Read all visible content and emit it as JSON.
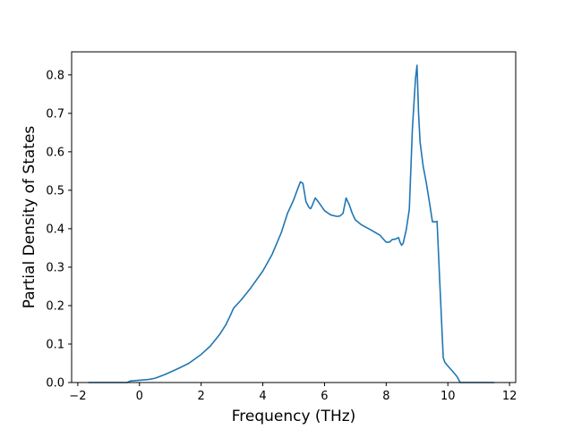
{
  "chart_data": {
    "type": "line",
    "title": "",
    "xlabel": "Frequency (THz)",
    "ylabel": "Partial Density of States",
    "xlim": [
      -2.2,
      12.2
    ],
    "ylim": [
      0.0,
      0.86
    ],
    "x_ticks": [
      -2,
      0,
      2,
      4,
      6,
      8,
      10,
      12
    ],
    "y_ticks": [
      0.0,
      0.1,
      0.2,
      0.3,
      0.4,
      0.5,
      0.6,
      0.7,
      0.8
    ],
    "x_tick_labels": [
      "−2",
      "0",
      "2",
      "4",
      "6",
      "8",
      "10",
      "12"
    ],
    "y_tick_labels": [
      "0.0",
      "0.1",
      "0.2",
      "0.3",
      "0.4",
      "0.5",
      "0.6",
      "0.7",
      "0.8"
    ],
    "grid": false,
    "legend": "none",
    "series": [
      {
        "color": "#1f77b4",
        "x": [
          -1.65,
          -1.2,
          -0.8,
          -0.4,
          -0.3,
          0.0,
          0.3,
          0.5,
          0.6,
          0.8,
          1.0,
          1.3,
          1.6,
          2.0,
          2.3,
          2.6,
          2.8,
          2.95,
          3.05,
          3.3,
          3.6,
          4.0,
          4.3,
          4.6,
          4.8,
          5.0,
          5.15,
          5.22,
          5.3,
          5.4,
          5.5,
          5.55,
          5.6,
          5.7,
          5.8,
          6.0,
          6.2,
          6.4,
          6.5,
          6.6,
          6.7,
          6.8,
          6.9,
          7.0,
          7.2,
          7.5,
          7.8,
          8.0,
          8.1,
          8.2,
          8.3,
          8.4,
          8.45,
          8.5,
          8.55,
          8.65,
          8.75,
          8.85,
          8.95,
          9.0,
          9.05,
          9.1,
          9.2,
          9.3,
          9.4,
          9.5,
          9.6,
          9.65,
          9.75,
          9.85,
          9.9,
          10.0,
          10.2,
          10.3,
          10.4,
          10.6,
          11.0,
          11.5
        ],
        "y": [
          0.0,
          0.0,
          0.0,
          0.0,
          0.004,
          0.006,
          0.008,
          0.011,
          0.014,
          0.02,
          0.027,
          0.038,
          0.05,
          0.073,
          0.095,
          0.125,
          0.15,
          0.175,
          0.193,
          0.215,
          0.245,
          0.29,
          0.333,
          0.39,
          0.44,
          0.475,
          0.508,
          0.522,
          0.518,
          0.47,
          0.455,
          0.452,
          0.46,
          0.48,
          0.47,
          0.447,
          0.436,
          0.432,
          0.433,
          0.44,
          0.48,
          0.463,
          0.44,
          0.423,
          0.41,
          0.397,
          0.383,
          0.365,
          0.365,
          0.372,
          0.373,
          0.377,
          0.365,
          0.357,
          0.362,
          0.397,
          0.45,
          0.66,
          0.79,
          0.825,
          0.7,
          0.625,
          0.562,
          0.52,
          0.47,
          0.418,
          0.418,
          0.419,
          0.24,
          0.065,
          0.053,
          0.043,
          0.025,
          0.015,
          0.0,
          0.0,
          0.0,
          0.0
        ]
      }
    ]
  }
}
